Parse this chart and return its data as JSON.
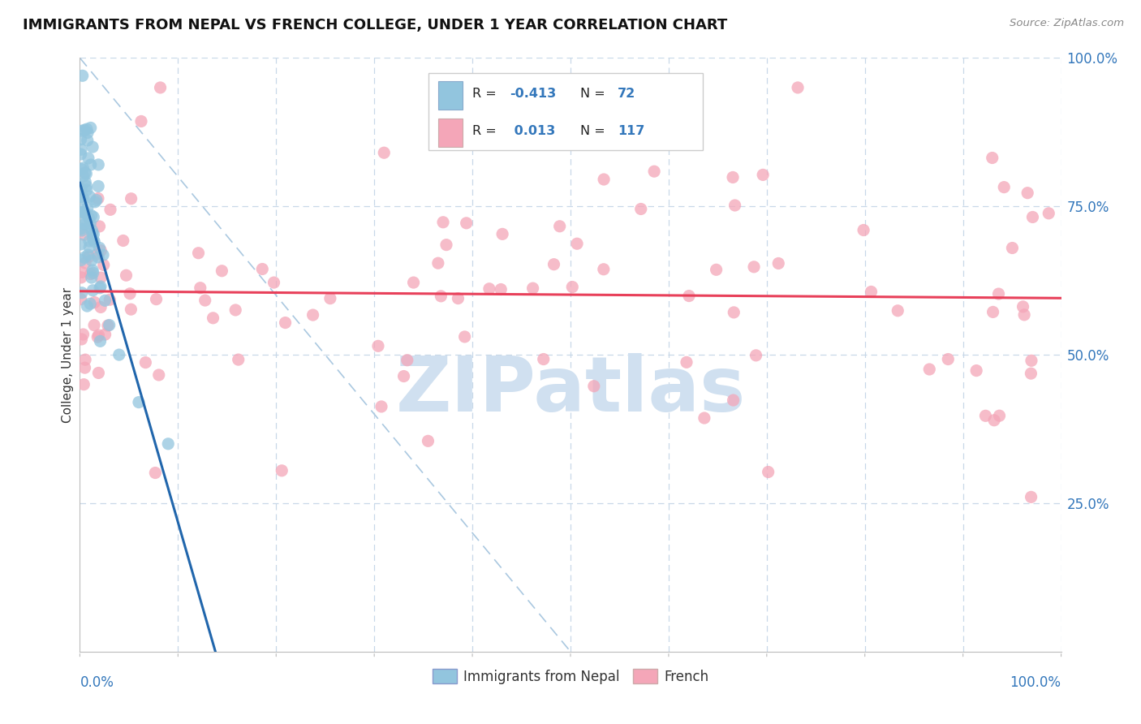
{
  "title": "IMMIGRANTS FROM NEPAL VS FRENCH COLLEGE, UNDER 1 YEAR CORRELATION CHART",
  "source": "Source: ZipAtlas.com",
  "ylabel": "College, Under 1 year",
  "right_yticks": [
    "25.0%",
    "50.0%",
    "75.0%",
    "100.0%"
  ],
  "right_ytick_vals": [
    0.25,
    0.5,
    0.75,
    1.0
  ],
  "legend_label1": "Immigrants from Nepal",
  "legend_label2": "French",
  "blue_color": "#92c5de",
  "pink_color": "#f4a6b8",
  "blue_line_color": "#2166ac",
  "pink_line_color": "#e8405a",
  "grid_color": "#c8d8e8",
  "watermark_color": "#d0e0f0",
  "background_color": "#ffffff",
  "nepal_R": -0.413,
  "nepal_N": 72,
  "french_R": 0.013,
  "french_N": 117
}
